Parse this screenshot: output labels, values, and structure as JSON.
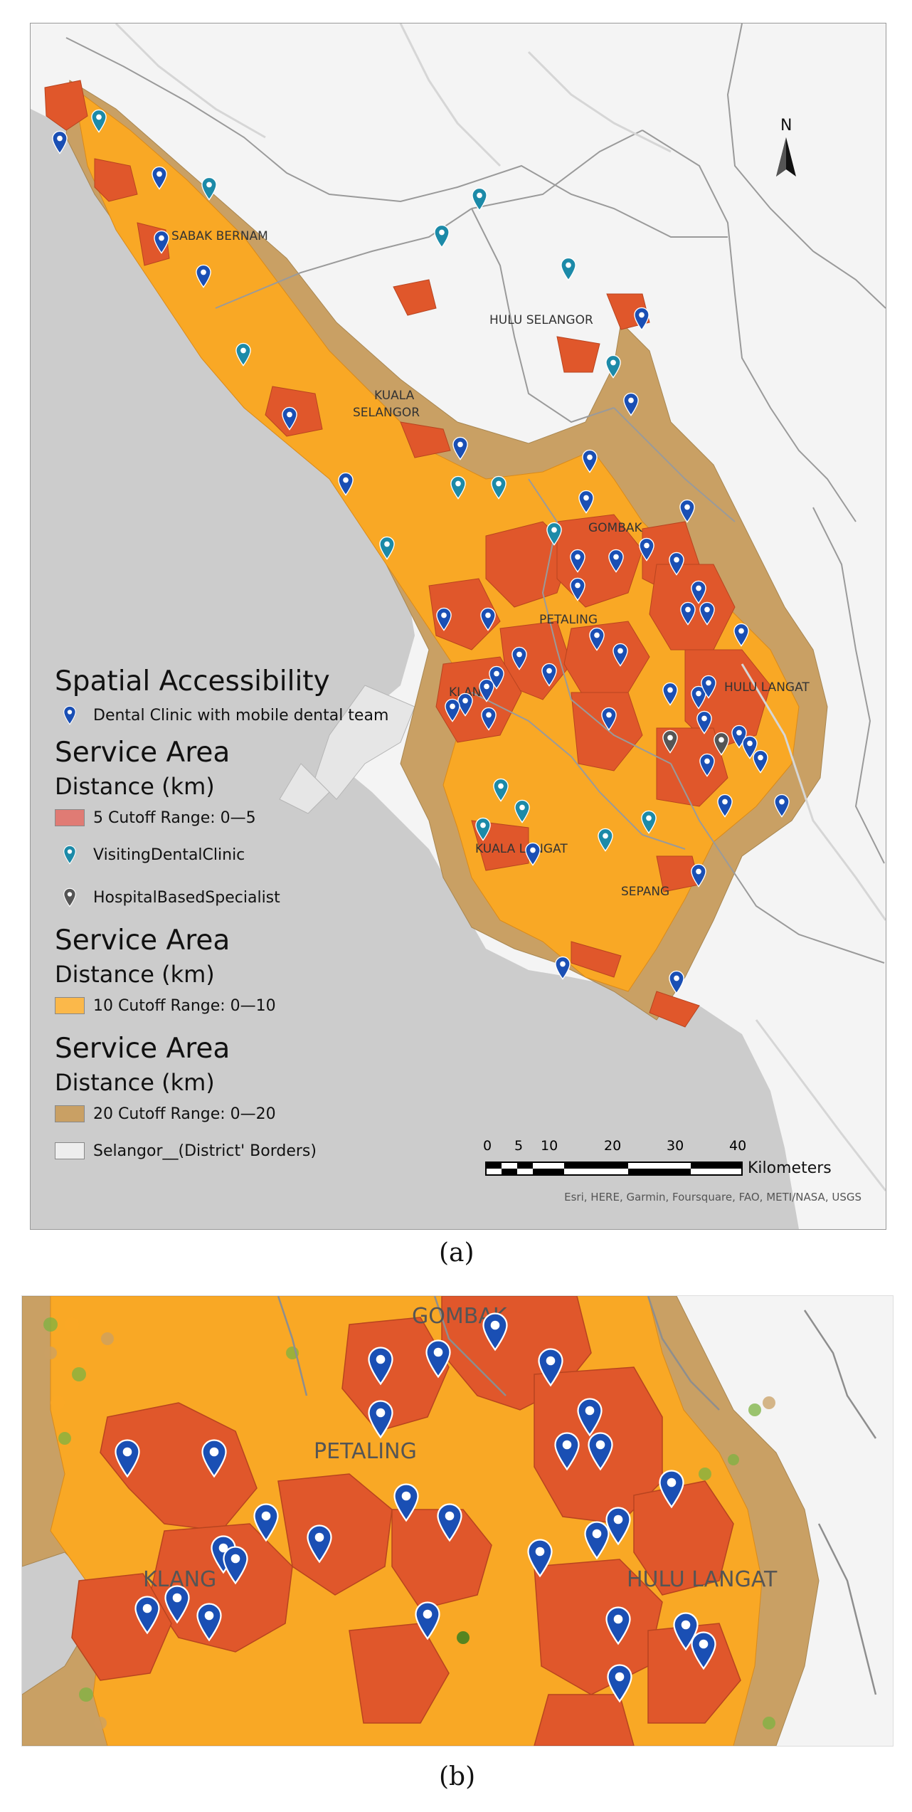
{
  "panel_a": {
    "legend": {
      "title": "Spatial Accessibility",
      "dental_clinic_label": "Dental Clinic with mobile dental team",
      "service_area_1": "Service Area",
      "distance_1": "Distance (km)",
      "cutoff_5": "5 Cutoff Range: 0—5",
      "visiting_label": "VisitingDentalClinic",
      "hospital_label": "HospitalBasedSpecialist",
      "service_area_2": "Service Area",
      "distance_2": "Distance (km)",
      "cutoff_10": "10 Cutoff Range: 0—10",
      "service_area_3": "Service Area",
      "distance_3": "Distance (km)",
      "cutoff_20": "20 Cutoff Range: 0—20",
      "borders_label": "Selangor__(District' Borders)"
    },
    "districts": [
      "SABAK BERNAM",
      "HULU SELANGOR",
      "KUALA",
      "SELANGOR",
      "GOMBAK",
      "PETALING",
      "KLANG",
      "HULU LANGAT",
      "KUALA LANGAT",
      "SEPANG"
    ],
    "north_label": "N",
    "scale": {
      "ticks": [
        "0",
        "5",
        "10",
        "20",
        "30",
        "40"
      ],
      "unit": "Kilometers"
    },
    "attribution": "Esri, HERE, Garmin, Foursquare, FAO, METI/NASA, USGS"
  },
  "panel_b": {
    "districts": [
      "GOMBAK",
      "PETALING",
      "KLANG",
      "HULU LANGAT"
    ]
  },
  "captions": {
    "a": "(a)",
    "b": "(b)"
  },
  "colors": {
    "sea": "#cccccc",
    "land": "#f4f4f4",
    "cutoff_5": "#e0572b",
    "cutoff_10": "#f9a825",
    "cutoff_20": "#c9a064",
    "dental_pin": "#1a4fb4",
    "visiting_pin": "#1c8aa8",
    "hospital_pin": "#555555",
    "border": "#9a9a9a"
  }
}
